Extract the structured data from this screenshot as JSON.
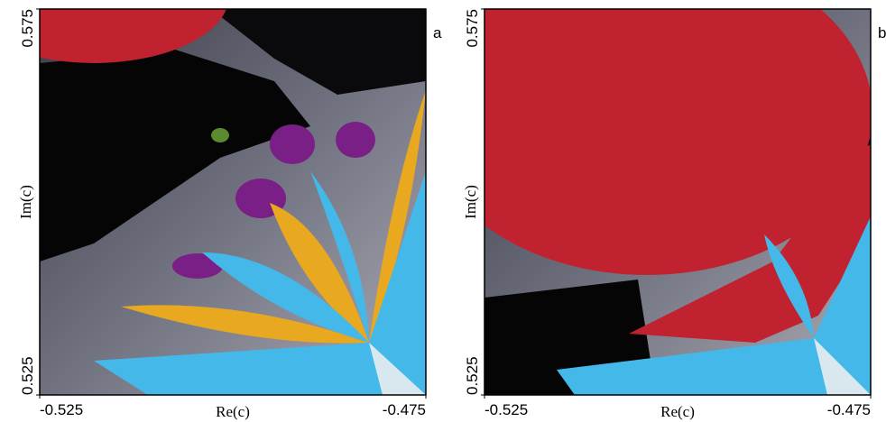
{
  "chart_data": [
    {
      "type": "image",
      "panel_label": "a",
      "xlabel": "Re(c)",
      "ylabel": "Im(c)",
      "xlim": [
        -0.525,
        -0.475
      ],
      "xticks": [
        -0.525,
        -0.475
      ],
      "ylim": [
        0.525,
        0.575
      ],
      "yticks": [
        0.525,
        0.575
      ]
    },
    {
      "type": "image",
      "panel_label": "b",
      "xlabel": "Re(c)",
      "ylabel": "Im(c)",
      "xlim": [
        -0.525,
        -0.475
      ],
      "xticks": [
        -0.525,
        -0.475
      ],
      "ylim": [
        0.525,
        0.575
      ],
      "yticks": [
        0.525,
        0.575
      ]
    }
  ]
}
